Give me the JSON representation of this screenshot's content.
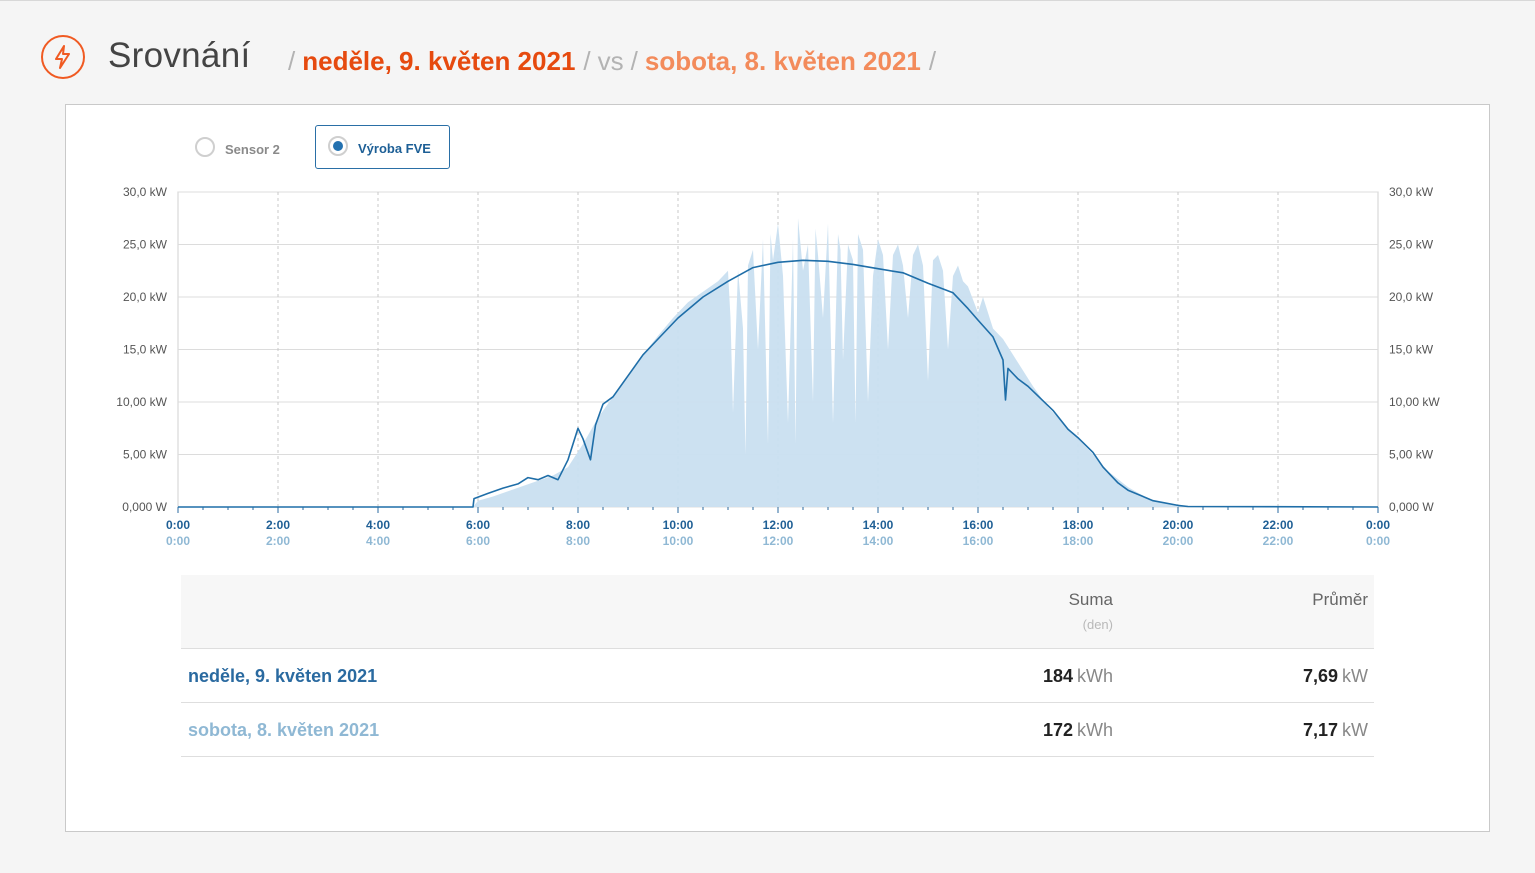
{
  "header": {
    "title": "Srovnání",
    "date_primary": "neděle, 9. květen 2021",
    "separator": "/",
    "vs": "vs",
    "date_secondary": "sobota, 8. květen 2021",
    "icon": "lightning-icon",
    "accent_color": "#f05a22",
    "secondary_color": "#f38b5b"
  },
  "selector": {
    "options": [
      {
        "label": "Sensor 2",
        "selected": false
      },
      {
        "label": "Výroba FVE",
        "selected": true
      }
    ]
  },
  "chart_data": {
    "type": "area",
    "x_unit": "time",
    "xlim": [
      "0:00",
      "24:00"
    ],
    "ylim": [
      0,
      30
    ],
    "y_unit": "kW",
    "grid": true,
    "x_ticks_primary": [
      "0:00",
      "2:00",
      "4:00",
      "6:00",
      "8:00",
      "10:00",
      "12:00",
      "14:00",
      "16:00",
      "18:00",
      "20:00",
      "22:00",
      "0:00"
    ],
    "x_ticks_secondary": [
      "0:00",
      "2:00",
      "4:00",
      "6:00",
      "8:00",
      "10:00",
      "12:00",
      "14:00",
      "16:00",
      "18:00",
      "20:00",
      "22:00",
      "0:00"
    ],
    "y_ticks_left": [
      "0,000 W",
      "5,00 kW",
      "10,00 kW",
      "15,0 kW",
      "20,0 kW",
      "25,0 kW",
      "30,0 kW"
    ],
    "y_ticks_right": [
      "0,000 W",
      "5,00 kW",
      "10,00 kW",
      "15,0 kW",
      "20,0 kW",
      "25,0 kW",
      "30,0 kW"
    ],
    "series": [
      {
        "name": "neděle, 9. květen 2021",
        "style": "line",
        "color": "#1f6ea8",
        "x_hours": [
          0,
          5.9,
          5.92,
          6.2,
          6.5,
          6.8,
          7.0,
          7.2,
          7.4,
          7.6,
          7.8,
          8.0,
          8.1,
          8.25,
          8.35,
          8.5,
          8.7,
          9.0,
          9.3,
          9.6,
          10.0,
          10.5,
          11.0,
          11.5,
          12.0,
          12.5,
          13.0,
          13.5,
          14.0,
          14.5,
          15.0,
          15.5,
          15.8,
          16.0,
          16.3,
          16.5,
          16.55,
          16.6,
          16.8,
          17.0,
          17.5,
          17.8,
          18.0,
          18.3,
          18.5,
          18.8,
          19.0,
          19.5,
          20.0,
          20.2,
          24.0
        ],
        "values": [
          0,
          0,
          0.8,
          1.3,
          1.8,
          2.2,
          2.8,
          2.6,
          3.0,
          2.6,
          4.5,
          7.5,
          6.5,
          4.5,
          7.8,
          9.8,
          10.5,
          12.5,
          14.5,
          16.0,
          18.0,
          20.0,
          21.5,
          22.8,
          23.3,
          23.5,
          23.4,
          23.1,
          22.7,
          22.3,
          21.3,
          20.4,
          18.9,
          17.8,
          16.2,
          14.0,
          10.2,
          13.2,
          12.2,
          11.5,
          9.2,
          7.4,
          6.6,
          5.2,
          3.8,
          2.3,
          1.6,
          0.6,
          0.15,
          0.05,
          0
        ]
      },
      {
        "name": "sobota, 8. květen 2021",
        "style": "area",
        "color": "#c9dff0",
        "x_hours": [
          0,
          5.9,
          6.0,
          6.3,
          6.6,
          6.9,
          7.2,
          7.5,
          7.8,
          8.1,
          8.4,
          8.7,
          9.0,
          9.3,
          9.6,
          9.9,
          10.2,
          10.5,
          10.8,
          11.0,
          11.05,
          11.1,
          11.2,
          11.3,
          11.35,
          11.4,
          11.5,
          11.6,
          11.7,
          11.8,
          11.85,
          11.9,
          12.0,
          12.1,
          12.2,
          12.3,
          12.35,
          12.4,
          12.5,
          12.6,
          12.7,
          12.75,
          12.8,
          12.9,
          13.0,
          13.1,
          13.2,
          13.25,
          13.3,
          13.4,
          13.5,
          13.55,
          13.6,
          13.7,
          13.8,
          13.9,
          14.0,
          14.1,
          14.2,
          14.3,
          14.4,
          14.5,
          14.6,
          14.7,
          14.8,
          14.9,
          15.0,
          15.1,
          15.2,
          15.3,
          15.4,
          15.5,
          15.6,
          15.7,
          15.8,
          16.0,
          16.1,
          16.3,
          16.5,
          16.7,
          16.9,
          17.1,
          17.4,
          17.7,
          18.0,
          18.3,
          18.6,
          19.0,
          19.4,
          19.8,
          20.2,
          20.6,
          24.0
        ],
        "values": [
          0,
          0,
          0.6,
          1.0,
          1.5,
          2.0,
          2.5,
          3.0,
          3.8,
          6.0,
          8.5,
          10.5,
          12.5,
          14.5,
          16.3,
          18.0,
          19.5,
          20.5,
          21.5,
          22.5,
          18.0,
          9.0,
          22.6,
          17.0,
          5.0,
          23.0,
          24.5,
          15.0,
          25.5,
          6.0,
          26.0,
          23.5,
          27.0,
          22.0,
          8.0,
          25.5,
          6.0,
          27.5,
          22.5,
          25.0,
          10.0,
          26.5,
          24.0,
          18.0,
          27.0,
          8.0,
          26.0,
          24.5,
          14.0,
          25.0,
          23.5,
          8.0,
          26.0,
          24.5,
          10.0,
          22.0,
          25.5,
          24.0,
          15.0,
          24.0,
          25.0,
          23.0,
          18.0,
          24.0,
          25.0,
          23.0,
          12.0,
          23.5,
          24.0,
          22.5,
          15.0,
          22.0,
          23.0,
          21.5,
          21.0,
          18.5,
          20.0,
          17.0,
          16.0,
          14.5,
          13.0,
          11.5,
          9.5,
          8.0,
          6.5,
          5.0,
          3.4,
          1.9,
          0.8,
          0.3,
          0.05,
          0.0,
          0
        ]
      }
    ]
  },
  "stats": {
    "col_sum": "Suma",
    "col_sum_sub": "(den)",
    "col_avg": "Průměr",
    "rows": [
      {
        "label": "neděle, 9. květen 2021",
        "sum": "184",
        "sum_unit": "kWh",
        "avg": "7,69",
        "avg_unit": "kW"
      },
      {
        "label": "sobota, 8. květen 2021",
        "sum": "172",
        "sum_unit": "kWh",
        "avg": "7,17",
        "avg_unit": "kW"
      }
    ]
  }
}
